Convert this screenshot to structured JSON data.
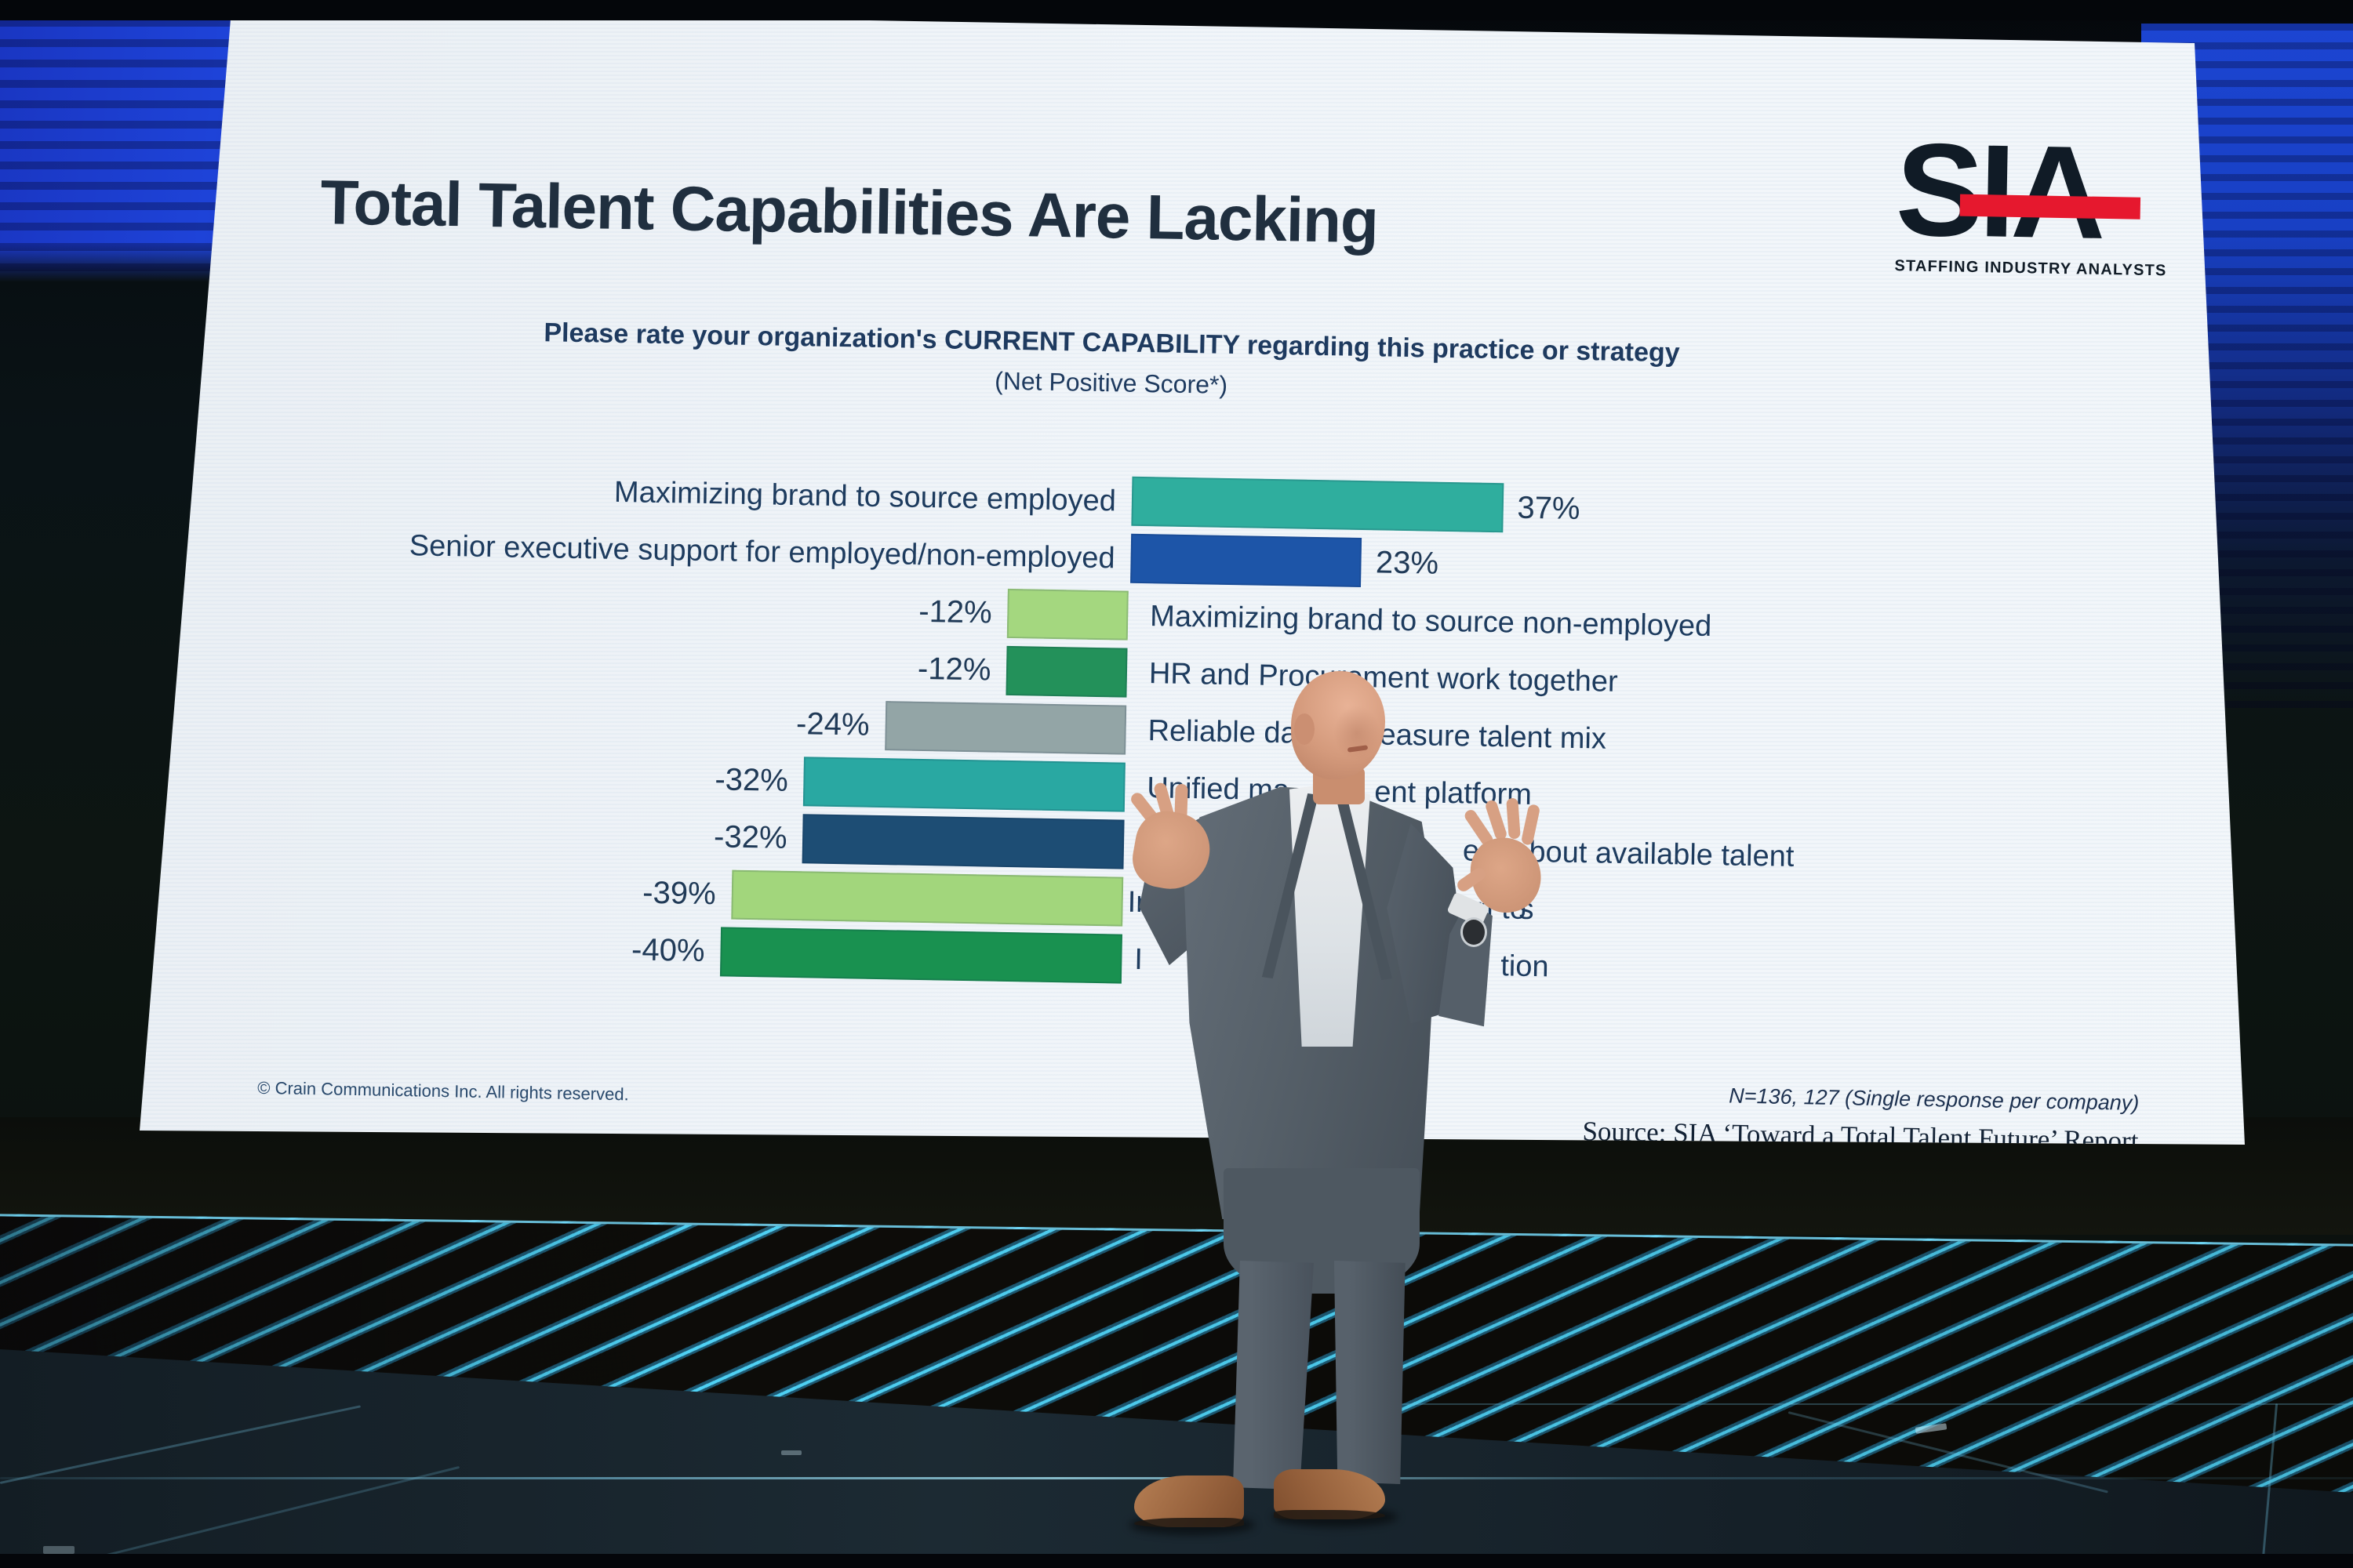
{
  "scene": {
    "description": "Conference keynote: presenter on a dark stage in front of a large projection screen, LED stripe banner along the stage edge",
    "presenter_alt": "Bald presenter in gray suit and open-collar shirt gesturing with both hands raised",
    "stage": {
      "led_stripe_color": "#4fd2f5",
      "floor_color": "#1c2a33",
      "glow_color_left": "#1e43d8",
      "glow_color_right": "#1c45d2"
    }
  },
  "slide": {
    "title": "Total Talent Capabilities Are Lacking",
    "subtitle": "Please rate your organization's CURRENT CAPABILITY regarding this practice or strategy",
    "subtitle_note": "(Net Positive Score*)",
    "footer_left": "© Crain Communications Inc. All rights reserved.",
    "sample_note": "N=136, 127 (Single response per company)",
    "source_note": "Source: SIA ‘Toward a Total Talent Future’ Report",
    "logo": {
      "text": "SIA",
      "tagline": "STAFFING INDUSTRY ANALYSTS",
      "bar_color": "#e6182e",
      "letter_color": "#101b26"
    }
  },
  "chart_data": {
    "type": "bar",
    "orientation": "horizontal",
    "value_unit": "percent (net positive score)",
    "xlim": [
      -40,
      37
    ],
    "grid": false,
    "legend": false,
    "categories": [
      "Maximizing brand to source employed",
      "Senior executive support for employed/non-employed",
      "Maximizing brand to source non-employed",
      "HR and Procurement work together",
      "Reliable data to measure talent mix",
      "Unified ma…ent platform",
      "Edu…ers about available talent",
      "In…n to…s",
      "I…tion"
    ],
    "values": [
      37,
      23,
      -12,
      -12,
      -24,
      -32,
      -32,
      -39,
      -40
    ],
    "value_labels": [
      "37%",
      "23%",
      "-12%",
      "-12%",
      "-24%",
      "-32%",
      "-32%",
      "-39%",
      "-40%"
    ],
    "bar_colors": [
      "#2fae9e",
      "#1d55a8",
      "#a4d77f",
      "#23915a",
      "#93a5a6",
      "#29a8a2",
      "#1d4d74",
      "#a2d67c",
      "#199150"
    ],
    "rows": [
      {
        "label": "Maximizing brand to source employed",
        "value": 37,
        "value_label": "37%",
        "color": "#2fae9e",
        "label_parts": [
          "Maximizing brand to source employed"
        ]
      },
      {
        "label": "Senior executive support for employed/non-employed",
        "value": 23,
        "value_label": "23%",
        "color": "#1d55a8",
        "label_parts": [
          "Senior executive support for employed/non-employed"
        ]
      },
      {
        "label": "Maximizing brand to source non-employed",
        "value": -12,
        "value_label": "-12%",
        "color": "#a4d77f",
        "label_parts": [
          "Maximizing brand to source non-employed"
        ]
      },
      {
        "label": "HR and Procurement work together",
        "value": -12,
        "value_label": "-12%",
        "color": "#23915a",
        "label_parts": [
          "HR and Procurement work together"
        ]
      },
      {
        "label": "Reliable data to measure talent mix",
        "value": -24,
        "value_label": "-24%",
        "color": "#93a5a6",
        "label_parts": [
          "Reliable dat",
          "easure talent mix"
        ]
      },
      {
        "label": "Unified ma…ent platform",
        "value": -32,
        "value_label": "-32%",
        "color": "#29a8a2",
        "label_parts": [
          "Unified ma",
          "ent platform"
        ]
      },
      {
        "label": "Edu…ers about available talent",
        "value": -32,
        "value_label": "-32%",
        "color": "#1d4d74",
        "label_parts": [
          "Edu",
          "ers about available talent"
        ]
      },
      {
        "label": "In…n to…s",
        "value": -39,
        "value_label": "-39%",
        "color": "#a2d67c",
        "label_parts": [
          "In",
          "n to",
          "s"
        ]
      },
      {
        "label": "I…tion",
        "value": -40,
        "value_label": "-40%",
        "color": "#199150",
        "label_parts": [
          "I",
          "tion"
        ]
      }
    ]
  }
}
